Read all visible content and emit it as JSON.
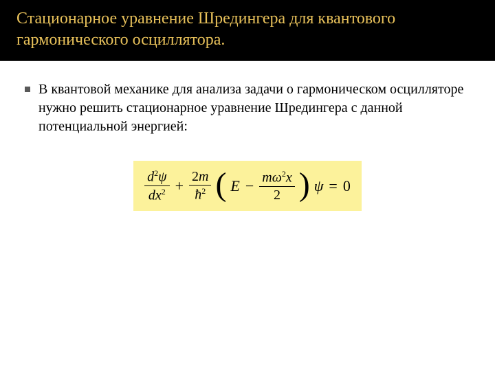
{
  "title": "Стационарное уравнение Шредингера для квантового гармонического осциллятора.",
  "body": "В квантовой механике для анализа задачи о гармоническом осцилляторе нужно решить стационарное уравнение Шредингера с данной потенциальной энергией:",
  "eq": {
    "frac1_num_d": "d",
    "frac1_num_exp": "2",
    "frac1_num_psi": "ψ",
    "frac1_den_dx": "dx",
    "frac1_den_exp": "2",
    "plus": "+",
    "frac2_num_val": "2",
    "frac2_num_m": "m",
    "frac2_den_hbar": "ħ",
    "frac2_den_exp": "2",
    "lpar": "(",
    "E": "E",
    "minus": "−",
    "frac3_num_m": "m",
    "frac3_num_omega": "ω",
    "frac3_num_oexp": "2",
    "frac3_num_x": "x",
    "frac3_den": "2",
    "rpar": ")",
    "psi": "ψ",
    "equals": "=",
    "zero": "0"
  },
  "style": {
    "title_color": "#e8c15a",
    "title_bg": "#000000",
    "eq_bg": "#fcf29b",
    "body_color": "#000000",
    "bullet_color": "#595959"
  }
}
